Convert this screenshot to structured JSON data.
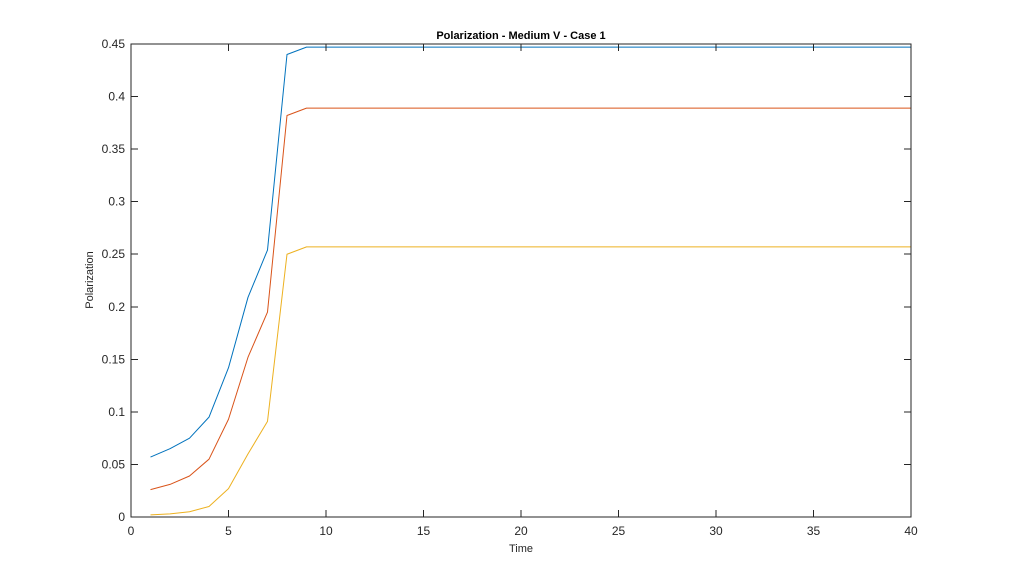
{
  "chart_data": {
    "type": "line",
    "title": "Polarization - Medium V - Case 1",
    "xlabel": "Time",
    "ylabel": "Polarization",
    "xlim": [
      0,
      40
    ],
    "ylim": [
      0,
      0.45
    ],
    "xticks": [
      0,
      5,
      10,
      15,
      20,
      25,
      30,
      35,
      40
    ],
    "yticks": [
      0,
      0.05,
      0.1,
      0.15,
      0.2,
      0.25,
      0.3,
      0.35,
      0.4,
      0.45
    ],
    "xtick_labels": [
      "0",
      "5",
      "10",
      "15",
      "20",
      "25",
      "30",
      "35",
      "40"
    ],
    "ytick_labels": [
      "0",
      "0.05",
      "0.1",
      "0.15",
      "0.2",
      "0.25",
      "0.3",
      "0.35",
      "0.4",
      "0.45"
    ],
    "grid": false,
    "box": true,
    "x": [
      1,
      2,
      3,
      4,
      5,
      6,
      7,
      8,
      9,
      10,
      11,
      12,
      13,
      14,
      15,
      16,
      17,
      18,
      19,
      20,
      21,
      22,
      23,
      24,
      25,
      26,
      27,
      28,
      29,
      30,
      31,
      32,
      33,
      34,
      35,
      36,
      37,
      38,
      39,
      40
    ],
    "series": [
      {
        "color": "#0072BD",
        "values": [
          0.057,
          0.065,
          0.075,
          0.095,
          0.142,
          0.209,
          0.254,
          0.44,
          0.447,
          0.447,
          0.447,
          0.447,
          0.447,
          0.447,
          0.447,
          0.447,
          0.447,
          0.447,
          0.447,
          0.447,
          0.447,
          0.447,
          0.447,
          0.447,
          0.447,
          0.447,
          0.447,
          0.447,
          0.447,
          0.447,
          0.447,
          0.447,
          0.447,
          0.447,
          0.447,
          0.447,
          0.447,
          0.447,
          0.447,
          0.447
        ]
      },
      {
        "color": "#D95319",
        "values": [
          0.026,
          0.031,
          0.039,
          0.055,
          0.093,
          0.152,
          0.195,
          0.382,
          0.389,
          0.389,
          0.389,
          0.389,
          0.389,
          0.389,
          0.389,
          0.389,
          0.389,
          0.389,
          0.389,
          0.389,
          0.389,
          0.389,
          0.389,
          0.389,
          0.389,
          0.389,
          0.389,
          0.389,
          0.389,
          0.389,
          0.389,
          0.389,
          0.389,
          0.389,
          0.389,
          0.389,
          0.389,
          0.389,
          0.389,
          0.389
        ]
      },
      {
        "color": "#EDB120",
        "values": [
          0.002,
          0.003,
          0.005,
          0.01,
          0.027,
          0.06,
          0.091,
          0.25,
          0.257,
          0.257,
          0.257,
          0.257,
          0.257,
          0.257,
          0.257,
          0.257,
          0.257,
          0.257,
          0.257,
          0.257,
          0.257,
          0.257,
          0.257,
          0.257,
          0.257,
          0.257,
          0.257,
          0.257,
          0.257,
          0.257,
          0.257,
          0.257,
          0.257,
          0.257,
          0.257,
          0.257,
          0.257,
          0.257,
          0.257,
          0.257
        ]
      }
    ]
  }
}
